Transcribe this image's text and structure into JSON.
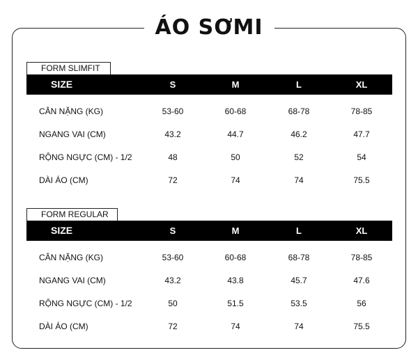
{
  "title": "ÁO SƠMI",
  "tables": [
    {
      "form": "FORM SLIMFIT",
      "header": {
        "size": "SIZE",
        "s": "S",
        "m": "M",
        "l": "L",
        "xl": "XL"
      },
      "rows": [
        {
          "label": "CÂN NẶNG (KG)",
          "s": "53-60",
          "m": "60-68",
          "l": "68-78",
          "xl": "78-85"
        },
        {
          "label": "NGANG VAI (CM)",
          "s": "43.2",
          "m": "44.7",
          "l": "46.2",
          "xl": "47.7"
        },
        {
          "label": "RỘNG NGỰC (CM) - 1/2",
          "s": "48",
          "m": "50",
          "l": "52",
          "xl": "54"
        },
        {
          "label": "DÀI ÁO (CM)",
          "s": "72",
          "m": "74",
          "l": "74",
          "xl": "75.5"
        }
      ]
    },
    {
      "form": "FORM REGULAR",
      "header": {
        "size": "SIZE",
        "s": "S",
        "m": "M",
        "l": "L",
        "xl": "XL"
      },
      "rows": [
        {
          "label": "CÂN NẶNG (KG)",
          "s": "53-60",
          "m": "60-68",
          "l": "68-78",
          "xl": "78-85"
        },
        {
          "label": "NGANG VAI (CM)",
          "s": "43.2",
          "m": "43.8",
          "l": "45.7",
          "xl": "47.6"
        },
        {
          "label": "RỘNG NGỰC (CM) - 1/2",
          "s": "50",
          "m": "51.5",
          "l": "53.5",
          "xl": "56"
        },
        {
          "label": "DÀI ÁO (CM)",
          "s": "72",
          "m": "74",
          "l": "74",
          "xl": "75.5"
        }
      ]
    }
  ]
}
